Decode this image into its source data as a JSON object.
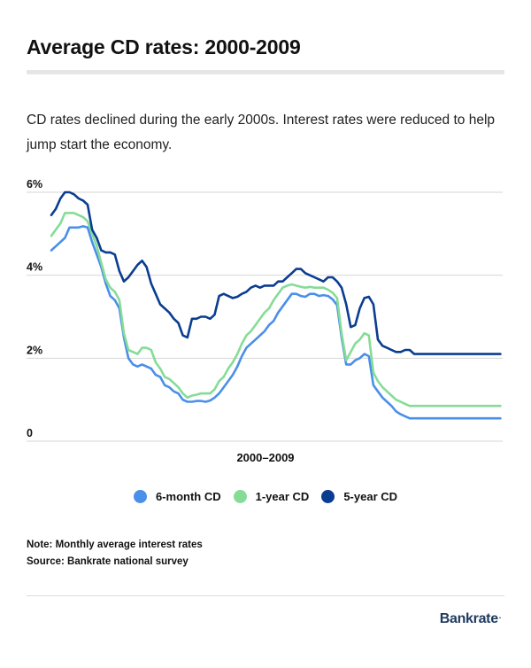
{
  "title": "Average CD rates: 2000-2009",
  "subtitle": "CD rates declined during the early 2000s. Interest rates were reduced to help jump start the economy.",
  "notes": {
    "note": "Note: Monthly average interest rates",
    "source": "Source: Bankrate national survey"
  },
  "brand": {
    "name": "Bankrate",
    "mark": "."
  },
  "chart_data": {
    "type": "line",
    "xlabel": "2000–2009",
    "ylabel": "",
    "ylim": [
      0,
      6
    ],
    "yticks": [
      {
        "value": 0,
        "label": "0"
      },
      {
        "value": 2,
        "label": "2%"
      },
      {
        "value": 4,
        "label": "4%"
      },
      {
        "value": 6,
        "label": "6%"
      }
    ],
    "grid": true,
    "legend_position": "bottom",
    "x_range": [
      2000.0,
      2009.95
    ],
    "x": [
      2000.0,
      2000.1,
      2000.2,
      2000.3,
      2000.4,
      2000.5,
      2000.6,
      2000.7,
      2000.8,
      2000.9,
      2001.0,
      2001.1,
      2001.2,
      2001.3,
      2001.4,
      2001.5,
      2001.6,
      2001.7,
      2001.8,
      2001.9,
      2002.0,
      2002.1,
      2002.2,
      2002.3,
      2002.4,
      2002.5,
      2002.6,
      2002.7,
      2002.8,
      2002.9,
      2003.0,
      2003.1,
      2003.2,
      2003.3,
      2003.4,
      2003.5,
      2003.6,
      2003.7,
      2003.8,
      2003.9,
      2004.0,
      2004.1,
      2004.2,
      2004.3,
      2004.4,
      2004.5,
      2004.6,
      2004.7,
      2004.8,
      2004.9,
      2005.0,
      2005.1,
      2005.2,
      2005.3,
      2005.4,
      2005.5,
      2005.6,
      2005.7,
      2005.8,
      2005.9,
      2006.0,
      2006.1,
      2006.2,
      2006.3,
      2006.4,
      2006.5,
      2006.6,
      2006.7,
      2006.8,
      2006.9,
      2007.0,
      2007.1,
      2007.2,
      2007.3,
      2007.4,
      2007.5,
      2007.6,
      2007.7,
      2007.8,
      2007.9,
      2008.0,
      2008.1,
      2008.2,
      2008.3,
      2008.4,
      2008.5,
      2008.6,
      2008.7,
      2008.8,
      2008.9,
      2009.0,
      2009.1,
      2009.2,
      2009.3,
      2009.4,
      2009.5,
      2009.6,
      2009.7,
      2009.8,
      2009.9
    ],
    "series": [
      {
        "name": "6-month CD",
        "color": "#4a8fea",
        "values": [
          4.6,
          4.7,
          4.8,
          4.9,
          5.15,
          5.15,
          5.15,
          5.18,
          5.15,
          4.8,
          4.5,
          4.2,
          3.8,
          3.5,
          3.4,
          3.2,
          2.5,
          2.0,
          1.85,
          1.8,
          1.85,
          1.8,
          1.75,
          1.6,
          1.55,
          1.35,
          1.3,
          1.2,
          1.15,
          1.0,
          0.95,
          0.95,
          0.97,
          0.97,
          0.95,
          0.98,
          1.05,
          1.15,
          1.3,
          1.45,
          1.6,
          1.8,
          2.05,
          2.25,
          2.35,
          2.45,
          2.55,
          2.65,
          2.8,
          2.9,
          3.1,
          3.25,
          3.4,
          3.55,
          3.55,
          3.5,
          3.48,
          3.55,
          3.55,
          3.5,
          3.52,
          3.5,
          3.42,
          3.28,
          2.5,
          1.85,
          1.85,
          1.95,
          2.0,
          2.1,
          2.05,
          1.35,
          1.2,
          1.05,
          0.95,
          0.85,
          0.72,
          0.65,
          0.6,
          0.55,
          0.55,
          0.55,
          0.55,
          0.55,
          0.55,
          0.55,
          0.55,
          0.55,
          0.55,
          0.55,
          0.55,
          0.55,
          0.55,
          0.55,
          0.55,
          0.55,
          0.55,
          0.55,
          0.55,
          0.55
        ]
      },
      {
        "name": "1-year CD",
        "color": "#86dc97",
        "values": [
          4.95,
          5.1,
          5.25,
          5.5,
          5.5,
          5.5,
          5.45,
          5.4,
          5.3,
          5.0,
          4.7,
          4.3,
          3.9,
          3.7,
          3.6,
          3.4,
          2.6,
          2.2,
          2.15,
          2.1,
          2.25,
          2.25,
          2.2,
          1.9,
          1.75,
          1.55,
          1.5,
          1.4,
          1.3,
          1.15,
          1.05,
          1.1,
          1.12,
          1.15,
          1.15,
          1.15,
          1.25,
          1.45,
          1.55,
          1.75,
          1.9,
          2.1,
          2.35,
          2.55,
          2.65,
          2.8,
          2.95,
          3.1,
          3.2,
          3.4,
          3.55,
          3.7,
          3.75,
          3.78,
          3.75,
          3.72,
          3.7,
          3.72,
          3.7,
          3.7,
          3.7,
          3.65,
          3.58,
          3.45,
          2.6,
          1.95,
          2.15,
          2.35,
          2.45,
          2.6,
          2.55,
          1.65,
          1.45,
          1.3,
          1.2,
          1.1,
          1.0,
          0.95,
          0.9,
          0.85,
          0.85,
          0.85,
          0.85,
          0.85,
          0.85,
          0.85,
          0.85,
          0.85,
          0.85,
          0.85,
          0.85,
          0.85,
          0.85,
          0.85,
          0.85,
          0.85,
          0.85,
          0.85,
          0.85,
          0.85
        ]
      },
      {
        "name": "5-year CD",
        "color": "#0a3d91",
        "values": [
          5.45,
          5.6,
          5.85,
          6.0,
          6.0,
          5.95,
          5.85,
          5.8,
          5.7,
          5.1,
          4.9,
          4.6,
          4.55,
          4.55,
          4.5,
          4.1,
          3.85,
          3.95,
          4.1,
          4.25,
          4.35,
          4.2,
          3.8,
          3.55,
          3.3,
          3.2,
          3.1,
          2.95,
          2.85,
          2.55,
          2.5,
          2.95,
          2.95,
          3.0,
          3.0,
          2.95,
          3.05,
          3.5,
          3.55,
          3.5,
          3.45,
          3.48,
          3.55,
          3.6,
          3.7,
          3.75,
          3.7,
          3.75,
          3.75,
          3.75,
          3.85,
          3.85,
          3.95,
          4.05,
          4.15,
          4.15,
          4.05,
          4.0,
          3.95,
          3.9,
          3.85,
          3.95,
          3.95,
          3.85,
          3.7,
          3.3,
          2.75,
          2.8,
          3.2,
          3.45,
          3.48,
          3.3,
          2.45,
          2.3,
          2.25,
          2.2,
          2.15,
          2.15,
          2.2,
          2.2,
          2.1,
          2.1,
          2.1,
          2.1,
          2.1,
          2.1,
          2.1,
          2.1,
          2.1,
          2.1,
          2.1,
          2.1,
          2.1,
          2.1,
          2.1,
          2.1,
          2.1,
          2.1,
          2.1,
          2.1
        ]
      }
    ]
  }
}
